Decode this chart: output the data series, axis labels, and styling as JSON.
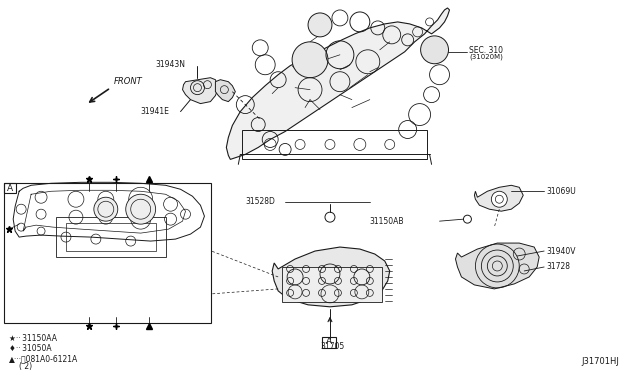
{
  "bg_color": "#ffffff",
  "line_color": "#1a1a1a",
  "diagram_id": "J31701HJ",
  "labels": {
    "SEC310_1": "SEC. 310",
    "SEC310_2": "(31020M)",
    "L31943N": "31943N",
    "L31941E": "31941E",
    "L31528D": "31528D",
    "L31705": "31705",
    "L31069U": "31069U",
    "L31150AB": "31150AB",
    "L31940V": "31940V",
    "L31728": "31728",
    "leg1": "★·· 31150AA",
    "leg2": "♦·· 31050A",
    "leg3": "▲···Ⓑ081A0-6121A",
    "leg3b": "( 2)",
    "FRONT": "FRONT",
    "A1": "A",
    "A2": "A"
  },
  "layout": {
    "fig_w": 6.4,
    "fig_h": 3.72,
    "dpi": 100
  }
}
